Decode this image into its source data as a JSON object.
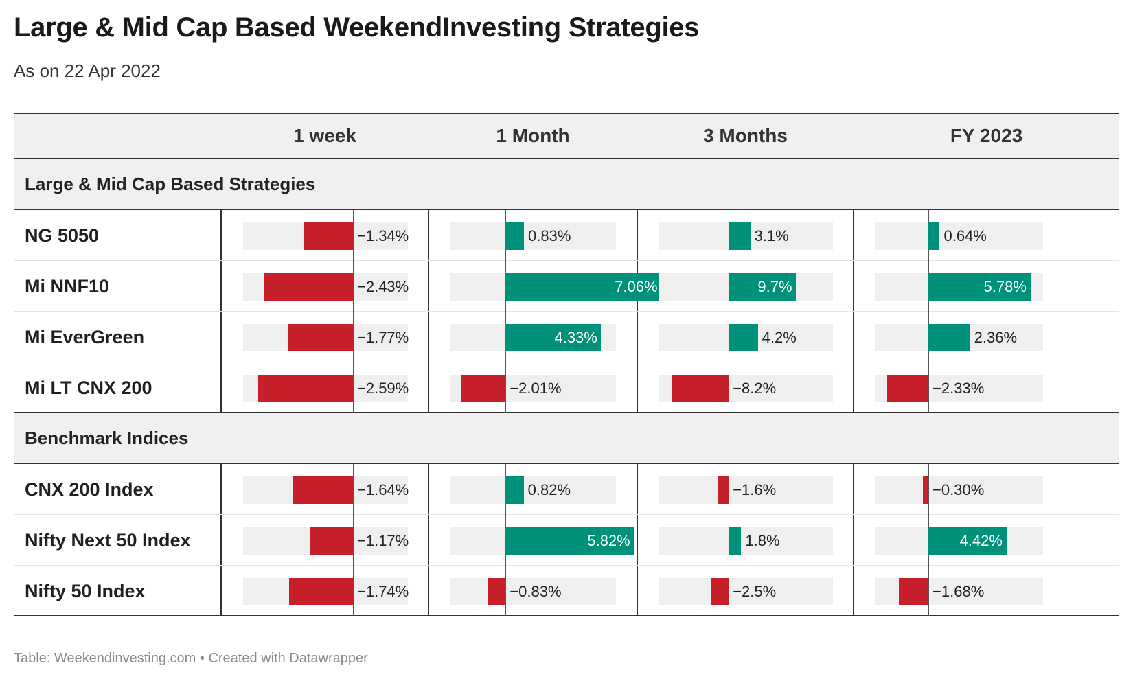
{
  "header": {
    "title": "Large & Mid Cap Based WeekendInvesting Strategies",
    "subtitle": "As on 22 Apr 2022"
  },
  "footer": {
    "source": "Table: Weekendinvesting.com • Created with Datawrapper"
  },
  "colors": {
    "positive": "#00917a",
    "negative": "#c8202a",
    "bar_background": "#efefef",
    "header_background": "#f0f0f0"
  },
  "chart_data": {
    "type": "table",
    "columns": [
      "1 week",
      "1 Month",
      "3 Months",
      "FY 2023"
    ],
    "column_ranges": [
      [
        -3,
        1.5
      ],
      [
        -2.5,
        5
      ],
      [
        -10,
        15
      ],
      [
        -3,
        6.5
      ]
    ],
    "groups": [
      {
        "label": "Large & Mid Cap Based Strategies",
        "rows": [
          {
            "name": "NG 5050",
            "values": [
              -1.34,
              0.83,
              3.1,
              0.64
            ],
            "labels": [
              "−1.34%",
              "0.83%",
              "3.1%",
              "0.64%"
            ]
          },
          {
            "name": "Mi NNF10",
            "values": [
              -2.43,
              7.06,
              9.7,
              5.78
            ],
            "labels": [
              "−2.43%",
              "7.06%",
              "9.7%",
              "5.78%"
            ]
          },
          {
            "name": "Mi EverGreen",
            "values": [
              -1.77,
              4.33,
              4.2,
              2.36
            ],
            "labels": [
              "−1.77%",
              "4.33%",
              "4.2%",
              "2.36%"
            ]
          },
          {
            "name": "Mi LT CNX 200",
            "values": [
              -2.59,
              -2.01,
              -8.2,
              -2.33
            ],
            "labels": [
              "−2.59%",
              "−2.01%",
              "−8.2%",
              "−2.33%"
            ]
          }
        ]
      },
      {
        "label": "Benchmark Indices",
        "rows": [
          {
            "name": "CNX 200 Index",
            "values": [
              -1.64,
              0.82,
              -1.6,
              -0.3
            ],
            "labels": [
              "−1.64%",
              "0.82%",
              "−1.6%",
              "−0.30%"
            ]
          },
          {
            "name": "Nifty Next 50 Index",
            "values": [
              -1.17,
              5.82,
              1.8,
              4.42
            ],
            "labels": [
              "−1.17%",
              "5.82%",
              "1.8%",
              "4.42%"
            ]
          },
          {
            "name": "Nifty 50 Index",
            "values": [
              -1.74,
              -0.83,
              -2.5,
              -1.68
            ],
            "labels": [
              "−1.74%",
              "−0.83%",
              "−2.5%",
              "−1.68%"
            ]
          }
        ]
      }
    ]
  }
}
